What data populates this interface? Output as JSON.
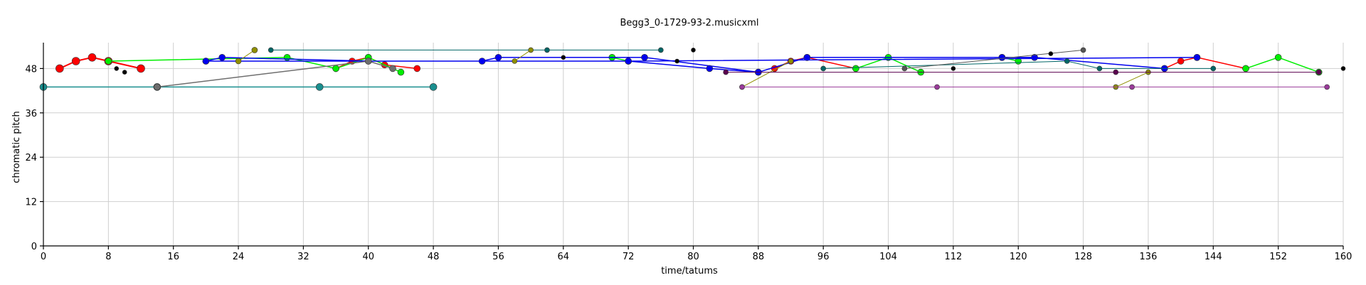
{
  "chart_data": {
    "type": "scatter",
    "title": "Begg3_0-1729-93-2.musicxml",
    "xlabel": "time/tatums",
    "ylabel": "chromatic pitch",
    "xlim": [
      0,
      160
    ],
    "ylim": [
      0,
      55
    ],
    "xticks": [
      0,
      8,
      16,
      24,
      32,
      40,
      48,
      56,
      64,
      72,
      80,
      88,
      96,
      104,
      112,
      120,
      128,
      136,
      144,
      152,
      160
    ],
    "yticks": [
      0,
      12,
      24,
      36,
      48
    ],
    "grid": true,
    "series": [
      {
        "color": "#ff0000",
        "size": 5.5,
        "width": 2,
        "points": [
          [
            2,
            48
          ],
          [
            4,
            50
          ],
          [
            6,
            51
          ],
          [
            8,
            50
          ],
          [
            12,
            48
          ]
        ]
      },
      {
        "color": "#ff0000",
        "size": 4.5,
        "width": 1.5,
        "points": [
          [
            36,
            48
          ],
          [
            38,
            50
          ],
          [
            40,
            51
          ],
          [
            42,
            49
          ],
          [
            46,
            48
          ]
        ]
      },
      {
        "color": "#ff0000",
        "size": 4.5,
        "width": 1.5,
        "points": [
          [
            90,
            48
          ],
          [
            92,
            50
          ],
          [
            94,
            51
          ],
          [
            100,
            48
          ]
        ]
      },
      {
        "color": "#ff0000",
        "size": 4.5,
        "width": 1.5,
        "points": [
          [
            138,
            48
          ],
          [
            140,
            50
          ],
          [
            142,
            51
          ],
          [
            148,
            48
          ]
        ]
      },
      {
        "color": "#00ee00",
        "size": 4.5,
        "width": 1.5,
        "points": [
          [
            8,
            50
          ],
          [
            30,
            51
          ],
          [
            36,
            48
          ],
          [
            40,
            51
          ],
          [
            44,
            47
          ]
        ]
      },
      {
        "color": "#00ee00",
        "size": 4.5,
        "width": 1.5,
        "points": [
          [
            70,
            51
          ],
          [
            72,
            50
          ]
        ]
      },
      {
        "color": "#00ee00",
        "size": 4.5,
        "width": 1.5,
        "points": [
          [
            100,
            48
          ],
          [
            104,
            51
          ],
          [
            108,
            47
          ]
        ]
      },
      {
        "color": "#00ee00",
        "size": 4.5,
        "width": 1.5,
        "points": [
          [
            118,
            51
          ],
          [
            120,
            50
          ]
        ]
      },
      {
        "color": "#00ee00",
        "size": 4.5,
        "width": 1.5,
        "points": [
          [
            148,
            48
          ],
          [
            152,
            51
          ],
          [
            157,
            47
          ]
        ]
      },
      {
        "color": "#0000ee",
        "size": 4.5,
        "width": 1.5,
        "points": [
          [
            20,
            50
          ],
          [
            22,
            51
          ],
          [
            40,
            50
          ]
        ]
      },
      {
        "color": "#0000ee",
        "size": 4.5,
        "width": 1.5,
        "points": [
          [
            54,
            50
          ],
          [
            56,
            51
          ],
          [
            74,
            51
          ],
          [
            88,
            47
          ]
        ]
      },
      {
        "color": "#0000ee",
        "size": 4.5,
        "width": 1.5,
        "points": [
          [
            72,
            50
          ],
          [
            82,
            48
          ],
          [
            88,
            47
          ],
          [
            94,
            51
          ],
          [
            118,
            51
          ],
          [
            122,
            51
          ],
          [
            138,
            48
          ]
        ]
      },
      {
        "color": "#0000ee",
        "size": 4.5,
        "width": 1.5,
        "points": [
          [
            20,
            50
          ],
          [
            72,
            50
          ],
          [
            142,
            51
          ]
        ]
      },
      {
        "color": "#1a8f8f",
        "size": 5,
        "width": 1.5,
        "points": [
          [
            0,
            43
          ],
          [
            14,
            43
          ],
          [
            34,
            43
          ],
          [
            48,
            43
          ]
        ]
      },
      {
        "color": "#006666",
        "size": 3.5,
        "width": 1,
        "points": [
          [
            28,
            53
          ],
          [
            62,
            53
          ],
          [
            76,
            53
          ]
        ]
      },
      {
        "color": "#006666",
        "size": 3.5,
        "width": 1,
        "points": [
          [
            96,
            48
          ],
          [
            126,
            50
          ],
          [
            130,
            48
          ],
          [
            144,
            48
          ]
        ]
      },
      {
        "color": "#6e6e6e",
        "size": 4.5,
        "width": 1.5,
        "points": [
          [
            14,
            43
          ],
          [
            40,
            50
          ],
          [
            43,
            48
          ]
        ]
      },
      {
        "color": "#555555",
        "size": 3.5,
        "width": 1,
        "points": [
          [
            106,
            48
          ],
          [
            128,
            53
          ]
        ]
      },
      {
        "color": "#8f8f00",
        "size": 4,
        "width": 1,
        "points": [
          [
            24,
            50
          ],
          [
            26,
            53
          ]
        ]
      },
      {
        "color": "#8f8f00",
        "size": 3.5,
        "width": 1,
        "points": [
          [
            58,
            50
          ],
          [
            60,
            53
          ]
        ]
      },
      {
        "color": "#8f8f00",
        "size": 3.5,
        "width": 1,
        "points": [
          [
            86,
            43
          ],
          [
            92,
            50
          ]
        ]
      },
      {
        "color": "#8f8f00",
        "size": 3.5,
        "width": 1,
        "points": [
          [
            132,
            43
          ],
          [
            136,
            47
          ]
        ]
      },
      {
        "color": "#5a004f",
        "size": 3.5,
        "width": 1,
        "points": [
          [
            84,
            47
          ],
          [
            132,
            47
          ],
          [
            157,
            47
          ]
        ]
      },
      {
        "color": "#9a3a9a",
        "size": 3.5,
        "width": 1,
        "points": [
          [
            86,
            43
          ],
          [
            110,
            43
          ],
          [
            134,
            43
          ],
          [
            158,
            43
          ]
        ]
      },
      {
        "color": "#000000",
        "size": 3,
        "width": 0,
        "points": [
          [
            9,
            48
          ],
          [
            10,
            47
          ],
          [
            64,
            51
          ],
          [
            78,
            50
          ],
          [
            80,
            53
          ],
          [
            112,
            48
          ],
          [
            124,
            52
          ],
          [
            160,
            48
          ]
        ]
      }
    ]
  }
}
